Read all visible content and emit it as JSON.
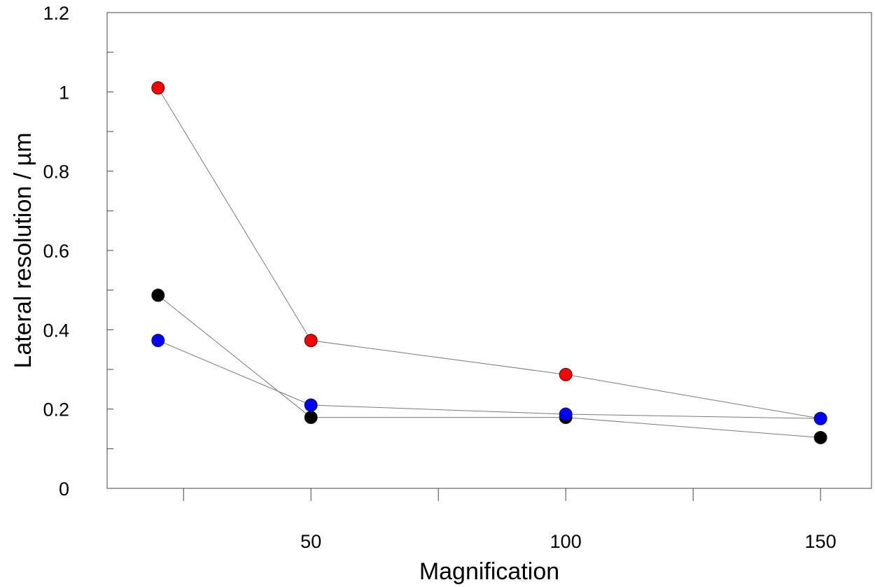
{
  "chart_data": {
    "type": "scatter",
    "title": "",
    "xlabel": "Magnification",
    "ylabel": "Lateral resolution / µm",
    "xlim": [
      10,
      160
    ],
    "ylim": [
      0,
      1.2
    ],
    "x_ticks": [
      {
        "value": 25,
        "label": ""
      },
      {
        "value": 50,
        "label": "50"
      },
      {
        "value": 75,
        "label": ""
      },
      {
        "value": 100,
        "label": "100"
      },
      {
        "value": 125,
        "label": ""
      },
      {
        "value": 150,
        "label": "150"
      }
    ],
    "y_ticks": [
      {
        "value": 0,
        "label": "0"
      },
      {
        "value": 0.1,
        "label": ""
      },
      {
        "value": 0.2,
        "label": "0.2"
      },
      {
        "value": 0.3,
        "label": ""
      },
      {
        "value": 0.4,
        "label": "0.4"
      },
      {
        "value": 0.5,
        "label": ""
      },
      {
        "value": 0.6,
        "label": "0.6"
      },
      {
        "value": 0.7,
        "label": ""
      },
      {
        "value": 0.8,
        "label": "0.8"
      },
      {
        "value": 0.9,
        "label": ""
      },
      {
        "value": 1.0,
        "label": "1"
      },
      {
        "value": 1.1,
        "label": ""
      },
      {
        "value": 1.2,
        "label": "1.2"
      }
    ],
    "grid": false,
    "legend": null,
    "series": [
      {
        "name": "red",
        "color": "#ff0000",
        "x": [
          20,
          50,
          100,
          150
        ],
        "values": [
          1.01,
          0.373,
          0.287,
          0.176
        ]
      },
      {
        "name": "black",
        "color": "#000000",
        "x": [
          20,
          50,
          100,
          150
        ],
        "values": [
          0.487,
          0.179,
          0.179,
          0.128
        ]
      },
      {
        "name": "blue",
        "color": "#0000ff",
        "x": [
          20,
          50,
          100,
          150
        ],
        "values": [
          0.373,
          0.21,
          0.187,
          0.176
        ]
      }
    ]
  }
}
